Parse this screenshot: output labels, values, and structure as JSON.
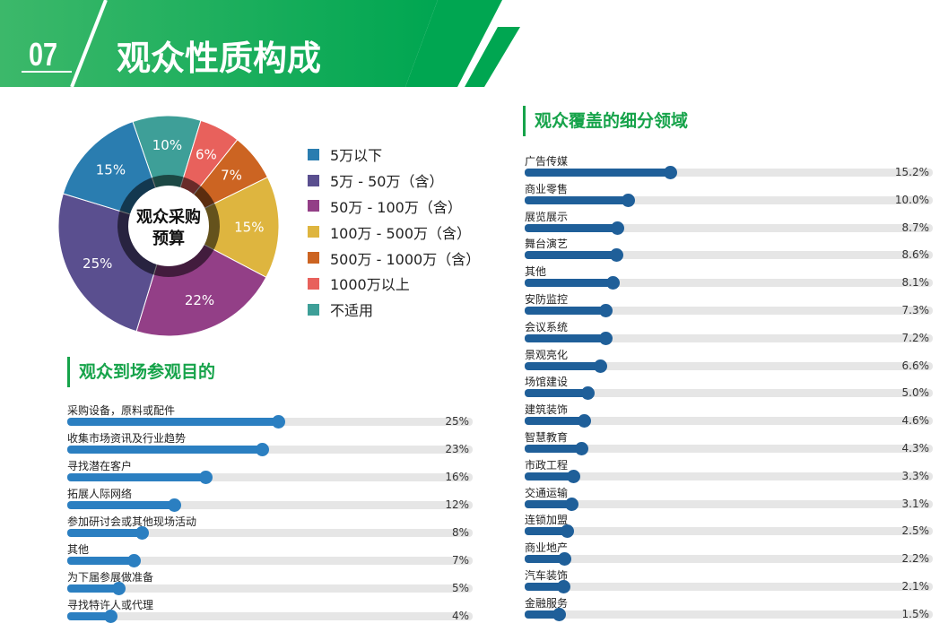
{
  "header": {
    "number": "07",
    "title": "观众性质构成"
  },
  "colors": {
    "green": "#16a34a",
    "bar_left": "#2b7fc1",
    "bar_right": "#1f5f99",
    "track": "#e6e6e6"
  },
  "chart_data": {
    "type": "pie",
    "center_label": "观众采购预算",
    "categories": [
      "5万以下",
      "5万 - 50万（含）",
      "50万 - 100万（含）",
      "100万 - 500万（含）",
      "500万 - 1000万（含）",
      "1000万以上",
      "不适用"
    ],
    "values": [
      15,
      25,
      22,
      15,
      7,
      6,
      10
    ],
    "labels": [
      "15%",
      "25%",
      "22%",
      "15%",
      "7%",
      "6%",
      "10%"
    ],
    "colors": [
      "#2a7db0",
      "#5a4f8f",
      "#933f87",
      "#deb53f",
      "#cc6422",
      "#e8615c",
      "#3e9f98"
    ],
    "legend_placement": "right"
  },
  "purpose": {
    "title": "观众到场参观目的",
    "items": [
      {
        "label": "采购设备，原料或配件",
        "value": 25,
        "pct": "25%"
      },
      {
        "label": "收集市场资讯及行业趋势",
        "value": 23,
        "pct": "23%"
      },
      {
        "label": "寻找潜在客户",
        "value": 16,
        "pct": "16%"
      },
      {
        "label": "拓展人际网络",
        "value": 12,
        "pct": "12%"
      },
      {
        "label": "参加研讨会或其他现场活动",
        "value": 8,
        "pct": "8%"
      },
      {
        "label": "其他",
        "value": 7,
        "pct": "7%"
      },
      {
        "label": "为下届参展做准备",
        "value": 5,
        "pct": "5%"
      },
      {
        "label": "寻找特许人或代理",
        "value": 4,
        "pct": "4%"
      }
    ]
  },
  "sectors": {
    "title": "观众覆盖的细分领域",
    "items": [
      {
        "label": "广告传媒",
        "value": 15.2,
        "pct": "15.2%"
      },
      {
        "label": "商业零售",
        "value": 10.0,
        "pct": "10.0%"
      },
      {
        "label": "展览展示",
        "value": 8.7,
        "pct": "8.7%"
      },
      {
        "label": "舞台演艺",
        "value": 8.6,
        "pct": "8.6%"
      },
      {
        "label": "其他",
        "value": 8.1,
        "pct": "8.1%"
      },
      {
        "label": "安防监控",
        "value": 7.3,
        "pct": "7.3%"
      },
      {
        "label": "会议系统",
        "value": 7.2,
        "pct": "7.2%"
      },
      {
        "label": "景观亮化",
        "value": 6.6,
        "pct": "6.6%"
      },
      {
        "label": "场馆建设",
        "value": 5.0,
        "pct": "5.0%"
      },
      {
        "label": "建筑装饰",
        "value": 4.6,
        "pct": "4.6%"
      },
      {
        "label": "智慧教育",
        "value": 4.3,
        "pct": "4.3%"
      },
      {
        "label": "市政工程",
        "value": 3.3,
        "pct": "3.3%"
      },
      {
        "label": "交通运输",
        "value": 3.1,
        "pct": "3.1%"
      },
      {
        "label": "连锁加盟",
        "value": 2.5,
        "pct": "2.5%"
      },
      {
        "label": "商业地产",
        "value": 2.2,
        "pct": "2.2%"
      },
      {
        "label": "汽车装饰",
        "value": 2.1,
        "pct": "2.1%"
      },
      {
        "label": "金融服务",
        "value": 1.5,
        "pct": "1.5%"
      }
    ]
  }
}
